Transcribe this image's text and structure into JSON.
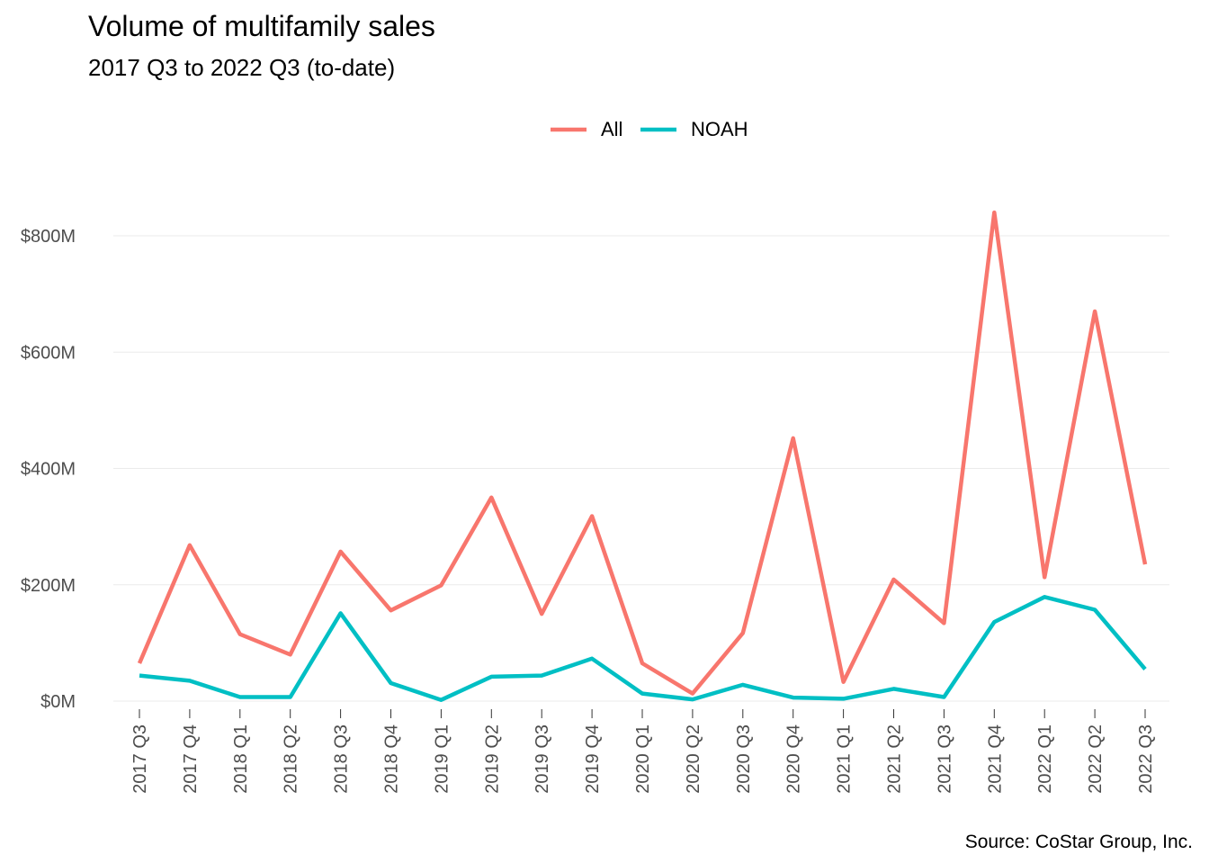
{
  "chart_data": {
    "type": "line",
    "title": "Volume of multifamily sales",
    "subtitle": "2017 Q3 to 2022 Q3 (to-date)",
    "caption": "Source: CoStar Group, Inc.",
    "xlabel": "",
    "ylabel": "",
    "ylim": [
      0,
      900
    ],
    "y_unit": "M",
    "y_ticks": [
      0,
      200,
      400,
      600,
      800
    ],
    "y_tick_labels": [
      "$0M",
      "$200M",
      "$400M",
      "$600M",
      "$800M"
    ],
    "grid": true,
    "legend_position": "top",
    "categories": [
      "2017 Q3",
      "2017 Q4",
      "2018 Q1",
      "2018 Q2",
      "2018 Q3",
      "2018 Q4",
      "2019 Q1",
      "2019 Q2",
      "2019 Q3",
      "2019 Q4",
      "2020 Q1",
      "2020 Q2",
      "2020 Q3",
      "2020 Q4",
      "2021 Q1",
      "2021 Q2",
      "2021 Q3",
      "2021 Q4",
      "2022 Q1",
      "2022 Q2",
      "2022 Q3"
    ],
    "series": [
      {
        "name": "All",
        "color": "#F8766D",
        "values": [
          65,
          268,
          115,
          80,
          257,
          156,
          199,
          350,
          150,
          318,
          65,
          13,
          117,
          452,
          33,
          209,
          134,
          840,
          213,
          670,
          235
        ]
      },
      {
        "name": "NOAH",
        "color": "#00BFC4",
        "values": [
          44,
          35,
          7,
          7,
          151,
          31,
          2,
          42,
          44,
          73,
          13,
          3,
          28,
          6,
          4,
          21,
          7,
          136,
          179,
          157,
          55
        ]
      }
    ]
  }
}
